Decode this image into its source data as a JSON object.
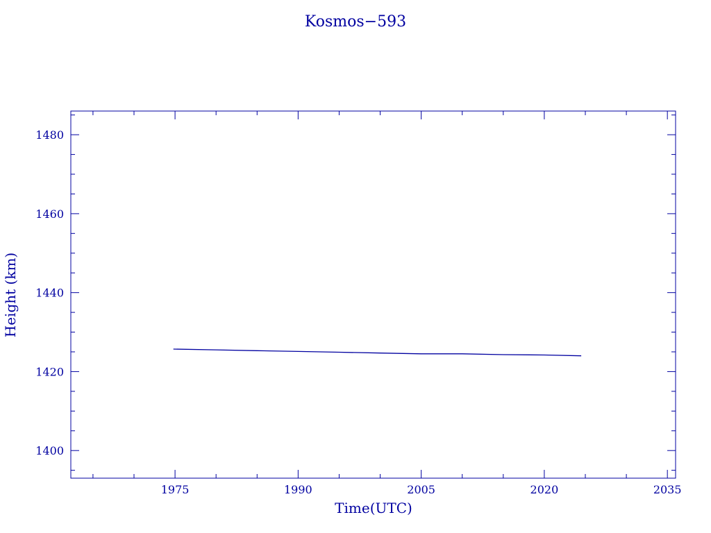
{
  "chart_data": {
    "type": "line",
    "title": "Kosmos−593",
    "xlabel": "Time(UTC)",
    "ylabel": "Height (km)",
    "xlim": [
      1962.3,
      2036.0
    ],
    "ylim": [
      1393,
      1486
    ],
    "x_ticks": [
      1975,
      1990,
      2005,
      2020,
      2035
    ],
    "y_ticks": [
      1400,
      1420,
      1440,
      1460,
      1480
    ],
    "color": "#0000a0",
    "grid": false,
    "series": [
      {
        "x": [
          1974.8,
          1980.0,
          1985.0,
          1990.0,
          1995.0,
          2000.0,
          2005.0,
          2010.0,
          2015.0,
          2020.0,
          2024.5
        ],
        "y": [
          1425.7,
          1425.5,
          1425.3,
          1425.1,
          1424.9,
          1424.7,
          1424.5,
          1424.5,
          1424.3,
          1424.2,
          1424.0
        ]
      }
    ]
  }
}
